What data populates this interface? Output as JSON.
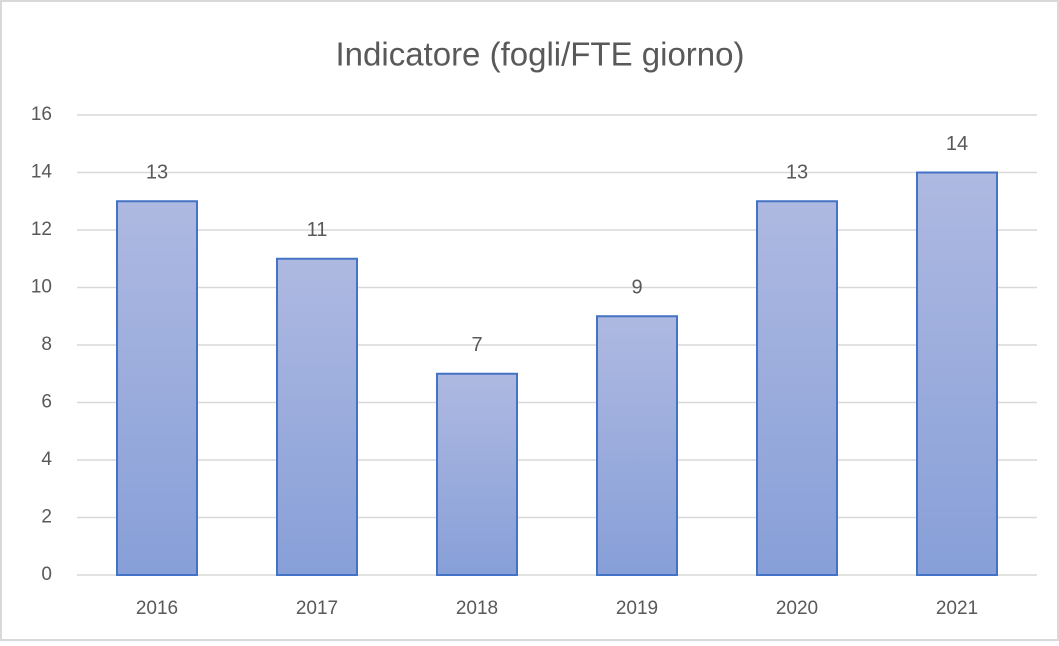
{
  "chart_data": {
    "type": "bar",
    "title": "Indicatore (fogli/FTE giorno)",
    "categories": [
      "2016",
      "2017",
      "2018",
      "2019",
      "2020",
      "2021"
    ],
    "values": [
      13,
      11,
      7,
      9,
      13,
      14
    ],
    "color": "#4472c4",
    "ylim": [
      0,
      16
    ],
    "yticks": [
      0,
      2,
      4,
      6,
      8,
      10,
      12,
      14,
      16
    ],
    "grid": true
  }
}
